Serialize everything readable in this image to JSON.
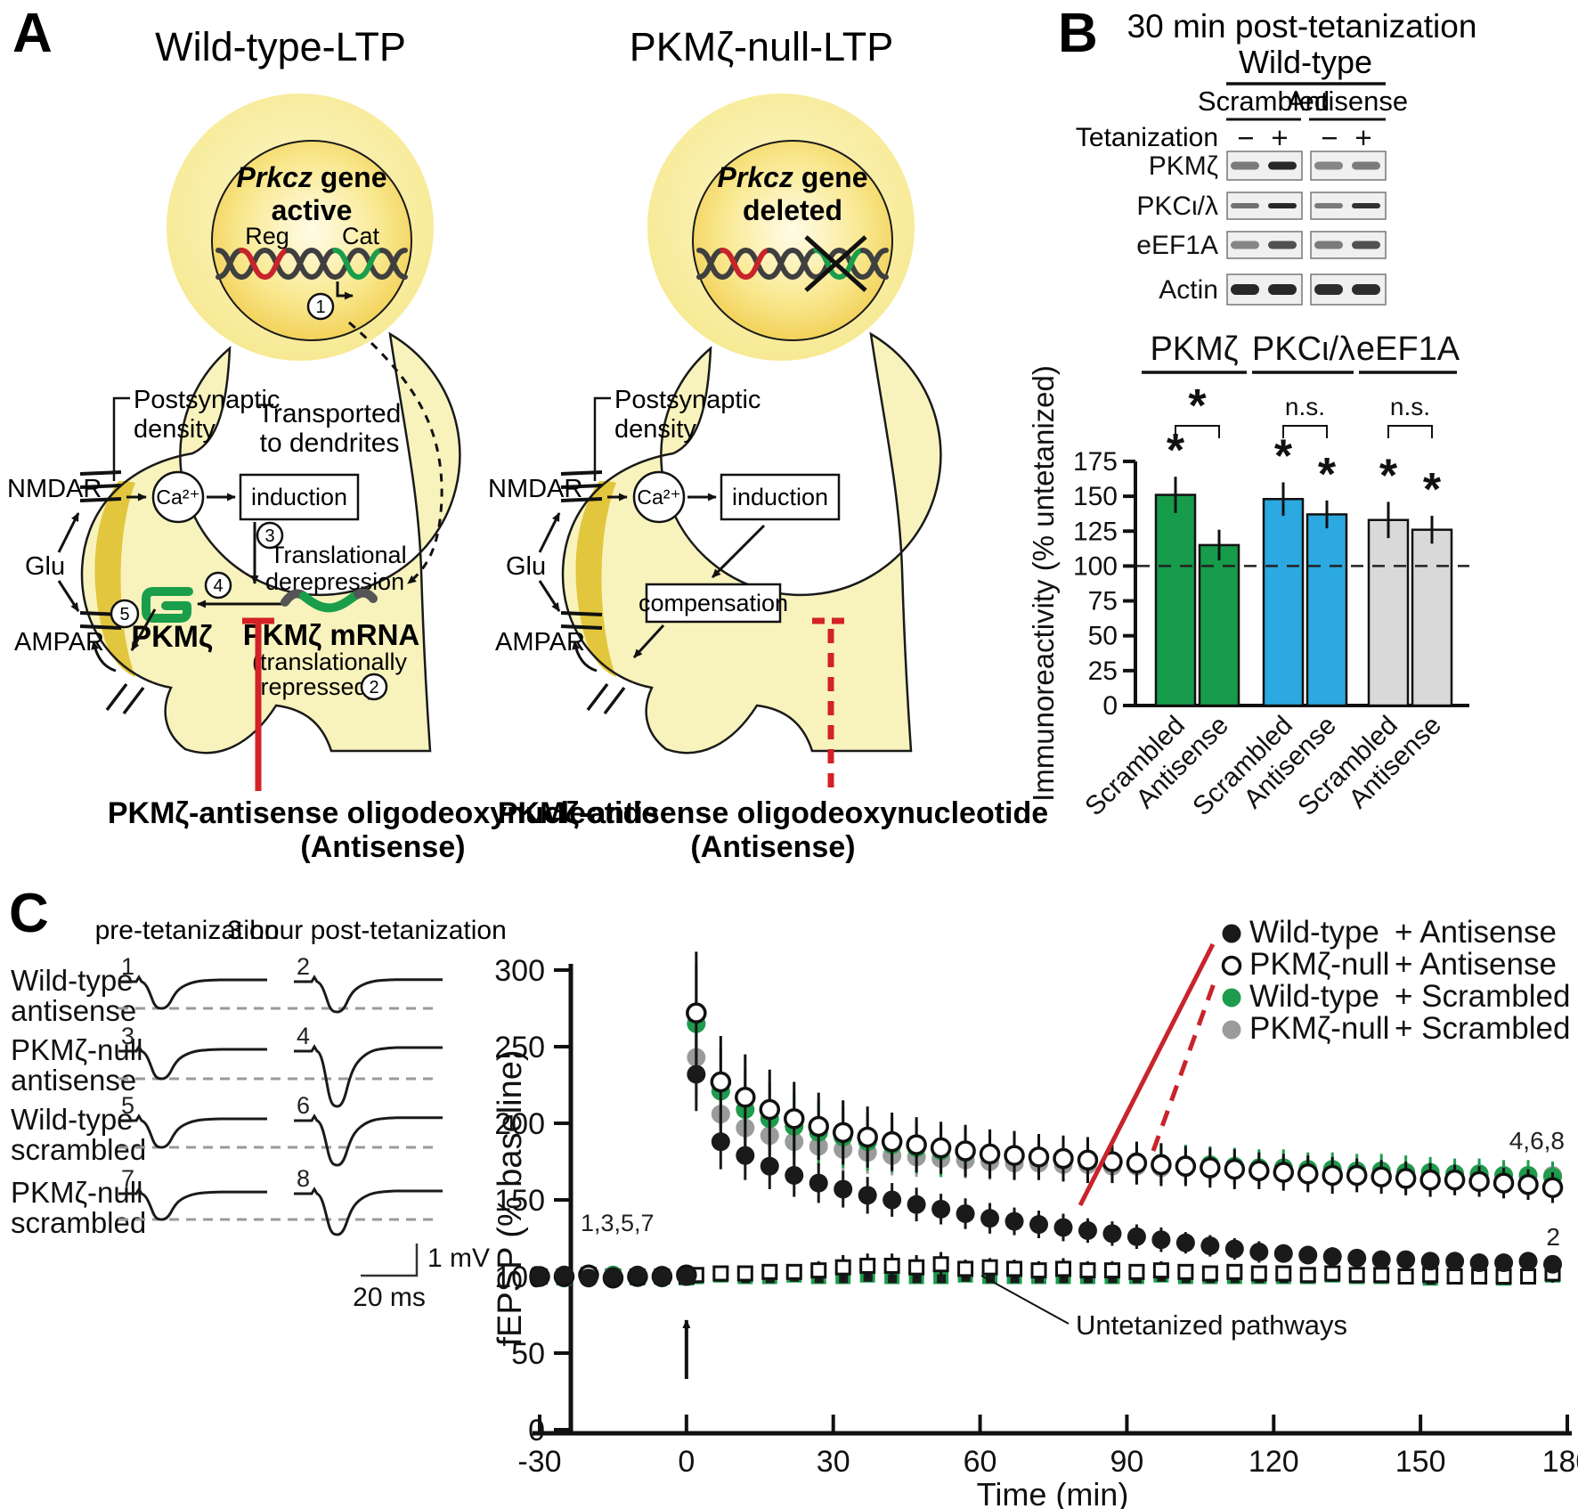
{
  "panelA": {
    "label": "A",
    "titles": {
      "left": "Wild-type-LTP",
      "right": "PKMζ-null-LTP"
    },
    "nucleus": {
      "gene": "Prkcz",
      "gene_word": " gene",
      "left_state": "active",
      "right_state": "deleted",
      "reg": "Reg",
      "cat": "Cat"
    },
    "steps": [
      "1",
      "2",
      "3",
      "4",
      "5"
    ],
    "labels": {
      "transported1": "Transported",
      "transported2": "to dendrites",
      "psd1": "Postsynaptic",
      "psd2": "density",
      "nmdar": "NMDAR",
      "glu": "Glu",
      "ampar": "AMPAR",
      "ca": "Ca²⁺",
      "induction": "induction",
      "translational1": "Translational",
      "translational2": "derepression",
      "pkmz": "PKMζ",
      "mrna1": "PKMζ mRNA",
      "mrna2": "(translationally",
      "mrna3": "repressed)",
      "compensation": "compensation",
      "antisense1": "PKMζ-antisense oligodeoxynucleotide",
      "antisense2": "(Antisense)"
    },
    "colors": {
      "cell": "#f8f3bd",
      "soma_inner": "#f6e47e",
      "nucleus_center": "#fffce8",
      "nucleus_edge": "#eec63e",
      "psd": "#e2c63d",
      "dna_gray": "#3f3f3f",
      "dna_red": "#c8242b",
      "dna_green": "#1a9e4b",
      "inhibit_red": "#d32127"
    }
  },
  "panelB": {
    "label": "B",
    "title": "30 min post-tetanization",
    "genotype": "Wild-type",
    "conditions": [
      "Scrambled",
      "Antisense"
    ],
    "tetanization": "Tetanization",
    "signs": [
      "−",
      "+",
      "−",
      "+"
    ],
    "blots": [
      {
        "protein": "PKMζ",
        "intensity": [
          0.55,
          0.95,
          0.5,
          0.55
        ],
        "band_h": 9
      },
      {
        "protein": "PKCι/λ",
        "intensity": [
          0.6,
          0.95,
          0.55,
          0.9
        ],
        "band_h": 6
      },
      {
        "protein": "eEF1A",
        "intensity": [
          0.5,
          0.75,
          0.55,
          0.75
        ],
        "band_h": 9
      },
      {
        "protein": "Actin",
        "intensity": [
          0.95,
          0.95,
          0.92,
          0.92
        ],
        "band_h": 12
      }
    ]
  },
  "panelC": {
    "label": "C",
    "col_headers": [
      "pre-tetanization",
      "3 hour post-tetanization"
    ],
    "rows": [
      {
        "label": [
          "Wild-type",
          "antisense"
        ],
        "nums": [
          "1",
          "2"
        ],
        "depths": [
          30,
          34
        ]
      },
      {
        "label": [
          "PKMζ-null",
          "antisense"
        ],
        "nums": [
          "3",
          "4"
        ],
        "depths": [
          31,
          62
        ]
      },
      {
        "label": [
          "Wild-type",
          "scrambled"
        ],
        "nums": [
          "5",
          "6"
        ],
        "depths": [
          30,
          50
        ]
      },
      {
        "label": [
          "PKMζ-null",
          "scrambled"
        ],
        "nums": [
          "7",
          "8"
        ],
        "depths": [
          29,
          46
        ]
      }
    ],
    "scale": {
      "v": "1 mV",
      "h": "20 ms"
    }
  },
  "chart_data": [
    {
      "id": "immunoreactivity",
      "type": "bar",
      "ylabel": "Immunoreactivity (% untetanized)",
      "ylim": [
        0,
        175
      ],
      "yticks": [
        0,
        25,
        50,
        75,
        100,
        125,
        150,
        175
      ],
      "baseline_dashed": 100,
      "groups": [
        {
          "label": "PKMζ",
          "color": "#169c4a",
          "comparison": "*",
          "bars": [
            {
              "label": "Scrambled",
              "value": 151,
              "err": 13,
              "sig": "*"
            },
            {
              "label": "Antisense",
              "value": 115,
              "err": 11,
              "sig": ""
            }
          ]
        },
        {
          "label": "PKCι/λ",
          "color": "#2ba9e0",
          "comparison": "n.s.",
          "bars": [
            {
              "label": "Scrambled",
              "value": 148,
              "err": 12,
              "sig": "*"
            },
            {
              "label": "Antisense",
              "value": 137,
              "err": 10,
              "sig": "*"
            }
          ]
        },
        {
          "label": "eEF1A",
          "color": "#d9d9d9",
          "comparison": "n.s.",
          "bars": [
            {
              "label": "Scrambled",
              "value": 133,
              "err": 13,
              "sig": "*"
            },
            {
              "label": "Antisense",
              "value": 126,
              "err": 10,
              "sig": "*"
            }
          ]
        }
      ]
    },
    {
      "id": "fepsp-timecourse",
      "type": "scatter",
      "xlabel": "Time (min)",
      "ylabel": "fEPSP (% baseline)",
      "xticks": [
        -30,
        0,
        30,
        60,
        90,
        120,
        150,
        180
      ],
      "yticks": [
        0,
        50,
        100,
        150,
        200,
        250,
        300
      ],
      "xlim": [
        -30,
        180
      ],
      "ylim": [
        0,
        300
      ],
      "tetanus_arrow_at": 0,
      "x": [
        -30,
        -25,
        -20,
        -15,
        -10,
        -5,
        0,
        2,
        7,
        12,
        17,
        22,
        27,
        32,
        37,
        42,
        47,
        52,
        57,
        62,
        67,
        72,
        77,
        82,
        87,
        92,
        97,
        102,
        107,
        112,
        117,
        122,
        127,
        132,
        137,
        142,
        147,
        152,
        157,
        162,
        167,
        172,
        177
      ],
      "series": [
        {
          "name": "PKMζ-null + Scrambled (untetanized)",
          "marker": "square-filled",
          "color": "#1a9e4b",
          "values": [
            100,
            99,
            100,
            100,
            99,
            100,
            99,
            100,
            101,
            100,
            100,
            101,
            100,
            100,
            101,
            100,
            100,
            100,
            101,
            100,
            100,
            100,
            100,
            100,
            100,
            100,
            101,
            100,
            100,
            100,
            100,
            100,
            100,
            101,
            100,
            100,
            100,
            99,
            100,
            100,
            99,
            100,
            101
          ],
          "err": [
            4,
            4,
            4,
            4,
            4,
            4,
            4,
            4,
            4,
            4,
            4,
            4,
            4,
            4,
            4,
            4,
            4,
            4,
            4,
            4,
            4,
            4,
            4,
            4,
            4,
            4,
            4,
            4,
            4,
            4,
            4,
            4,
            4,
            4,
            4,
            4,
            4,
            4,
            4,
            4,
            4,
            4,
            4
          ]
        },
        {
          "name": "Untetanized pathways (open squares)",
          "marker": "square-open",
          "color": "#111111",
          "values": [
            100,
            100,
            101,
            100,
            100,
            100,
            100,
            101,
            102,
            102,
            103,
            103,
            104,
            106,
            107,
            107,
            106,
            108,
            105,
            106,
            105,
            104,
            105,
            104,
            104,
            103,
            104,
            103,
            102,
            103,
            102,
            102,
            101,
            102,
            101,
            101,
            100,
            101,
            100,
            100,
            100,
            100,
            102
          ],
          "err": [
            4,
            4,
            4,
            4,
            4,
            4,
            4,
            4,
            5,
            5,
            5,
            5,
            6,
            8,
            8,
            8,
            8,
            8,
            6,
            6,
            6,
            6,
            7,
            6,
            6,
            5,
            6,
            5,
            5,
            5,
            5,
            5,
            5,
            5,
            5,
            5,
            4,
            4,
            4,
            4,
            4,
            4,
            6
          ]
        },
        {
          "name": "PKMζ-null + Scrambled",
          "marker": "circle-filled",
          "color": "#9b9b9b",
          "values": [
            100,
            100,
            99,
            100,
            100,
            101,
            100,
            243,
            206,
            197,
            192,
            188,
            185,
            183,
            181,
            179,
            178,
            177,
            176,
            175,
            174,
            174,
            173,
            173,
            172,
            172,
            171,
            171,
            170,
            170,
            170,
            169,
            169,
            169,
            168,
            168,
            168,
            167,
            167,
            167,
            166,
            166,
            166
          ],
          "err": [
            3,
            3,
            3,
            3,
            3,
            3,
            3,
            28,
            20,
            18,
            17,
            16,
            15,
            14,
            14,
            13,
            13,
            12,
            12,
            12,
            11,
            11,
            11,
            10,
            10,
            10,
            10,
            10,
            9,
            9,
            9,
            9,
            9,
            9,
            9,
            8,
            8,
            8,
            8,
            8,
            8,
            8,
            8
          ]
        },
        {
          "name": "Wild-type + Scrambled",
          "marker": "circle-filled",
          "color": "#1f9b4d",
          "values": [
            100,
            99,
            100,
            101,
            100,
            99,
            100,
            265,
            221,
            209,
            203,
            198,
            194,
            191,
            188,
            186,
            184,
            182,
            181,
            180,
            179,
            178,
            177,
            176,
            175,
            175,
            174,
            173,
            173,
            172,
            171,
            171,
            170,
            170,
            169,
            169,
            168,
            168,
            167,
            167,
            166,
            166,
            165
          ],
          "err": [
            3,
            3,
            3,
            3,
            3,
            3,
            3,
            38,
            28,
            26,
            24,
            22,
            21,
            20,
            19,
            18,
            17,
            17,
            16,
            16,
            15,
            15,
            14,
            14,
            14,
            13,
            13,
            13,
            12,
            12,
            12,
            12,
            11,
            11,
            11,
            11,
            11,
            10,
            10,
            10,
            10,
            10,
            10
          ]
        },
        {
          "name": "PKMζ-null + Antisense",
          "marker": "circle-open",
          "color": "#111111",
          "values": [
            100,
            100,
            101,
            99,
            100,
            100,
            101,
            272,
            227,
            217,
            209,
            203,
            198,
            194,
            191,
            188,
            186,
            184,
            182,
            180,
            179,
            178,
            177,
            176,
            175,
            174,
            173,
            172,
            171,
            170,
            169,
            168,
            167,
            166,
            166,
            165,
            164,
            163,
            163,
            162,
            161,
            160,
            158
          ],
          "err": [
            3,
            3,
            3,
            3,
            3,
            3,
            3,
            40,
            30,
            28,
            26,
            24,
            22,
            21,
            20,
            19,
            18,
            17,
            17,
            16,
            16,
            15,
            15,
            15,
            14,
            14,
            14,
            13,
            13,
            13,
            12,
            12,
            12,
            12,
            11,
            11,
            11,
            11,
            10,
            10,
            10,
            10,
            10
          ]
        },
        {
          "name": "Wild-type + Antisense",
          "marker": "circle-filled",
          "color": "#1a1a1a",
          "values": [
            100,
            101,
            99,
            100,
            101,
            100,
            100,
            232,
            188,
            179,
            172,
            166,
            161,
            157,
            153,
            150,
            147,
            144,
            141,
            138,
            136,
            134,
            132,
            130,
            128,
            126,
            124,
            122,
            120,
            118,
            116,
            115,
            114,
            113,
            112,
            111,
            111,
            110,
            110,
            109,
            109,
            110,
            108
          ],
          "err": [
            3,
            3,
            3,
            3,
            3,
            3,
            3,
            24,
            18,
            16,
            15,
            14,
            13,
            12,
            12,
            11,
            11,
            10,
            10,
            10,
            9,
            9,
            9,
            8,
            8,
            8,
            8,
            7,
            7,
            7,
            7,
            6,
            6,
            6,
            6,
            6,
            5,
            5,
            5,
            5,
            5,
            5,
            5
          ]
        }
      ],
      "legend": [
        {
          "genotype": "Wild-type",
          "treatment": "+ Antisense",
          "marker": "circle-filled",
          "color": "#1a1a1a"
        },
        {
          "genotype": "PKMζ-null",
          "treatment": "+ Antisense",
          "marker": "circle-open",
          "color": "#111111"
        },
        {
          "genotype": "Wild-type",
          "treatment": "+ Scrambled",
          "marker": "circle-filled",
          "color": "#1f9b4d"
        },
        {
          "genotype": "PKMζ-null",
          "treatment": "+ Scrambled",
          "marker": "circle-filled",
          "color": "#9b9b9b"
        }
      ],
      "annotations": {
        "baseline": "1,3,5,7",
        "tet_right": "4,6,8",
        "wt_right": "2",
        "untetanized": "Untetanized pathways"
      }
    }
  ]
}
